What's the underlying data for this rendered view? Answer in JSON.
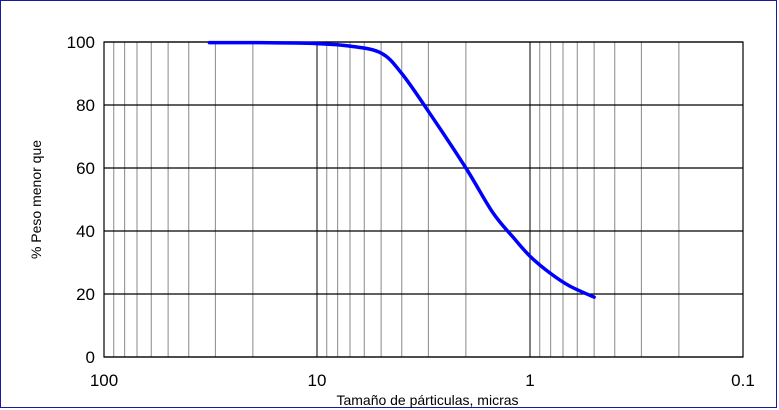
{
  "chart_data": {
    "type": "line",
    "title": "",
    "xlabel": "Tamaño de párticulas,  micras",
    "ylabel": "% Peso menor que",
    "x_scale": "log",
    "x_reversed": true,
    "xlim": [
      100,
      0.1
    ],
    "ylim": [
      0,
      100
    ],
    "x_ticks": [
      100,
      10,
      1,
      0.1
    ],
    "x_tick_labels": [
      "100",
      "10",
      "1",
      "0.1"
    ],
    "y_ticks": [
      0,
      20,
      40,
      60,
      80,
      100
    ],
    "y_tick_labels": [
      "0",
      "20",
      "40",
      "60",
      "80",
      "100"
    ],
    "grid": true,
    "legend": "none",
    "series": [
      {
        "color": "#0000ff",
        "x": [
          32,
          20,
          10,
          7,
          5,
          4,
          3,
          2,
          1.5,
          1.2,
          1.0,
          0.8,
          0.65,
          0.5
        ],
        "y": [
          99.8,
          99.8,
          99.5,
          98.7,
          96.5,
          90,
          78,
          60,
          46,
          38,
          32,
          26.5,
          22.5,
          19
        ]
      }
    ]
  }
}
